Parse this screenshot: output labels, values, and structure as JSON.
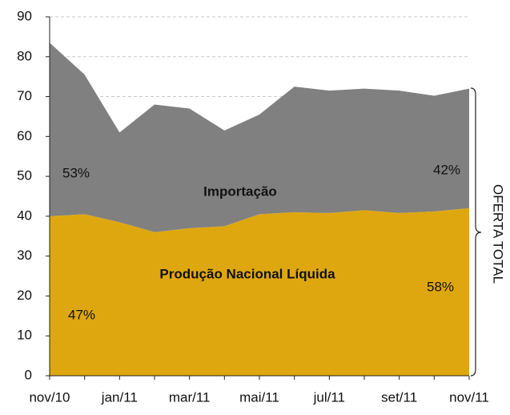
{
  "chart_data": {
    "type": "stacked-area",
    "categories": [
      "nov/10",
      null,
      "jan/11",
      null,
      "mar/11",
      null,
      "mai/11",
      null,
      "jul/11",
      null,
      "set/11",
      null,
      "nov/11"
    ],
    "series": [
      {
        "name": "Produção Nacional Líquida",
        "color": "#dfa70f",
        "values": [
          40,
          40.5,
          38.5,
          36,
          37,
          37.5,
          40.5,
          41,
          40.8,
          41.5,
          40.8,
          41.2,
          42
        ]
      },
      {
        "name": "Importação",
        "color": "#808080",
        "values": [
          43.5,
          35,
          22.5,
          32,
          30,
          24,
          25,
          31.5,
          30.7,
          30.5,
          30.7,
          29,
          30
        ]
      }
    ],
    "annotations": [
      "47%",
      "53%",
      "58%",
      "42%",
      "OFERTA TOTAL"
    ],
    "ylim": [
      0,
      90
    ],
    "yticks": [
      0,
      10,
      20,
      30,
      40,
      50,
      60,
      70,
      80,
      90
    ],
    "grid": true
  }
}
